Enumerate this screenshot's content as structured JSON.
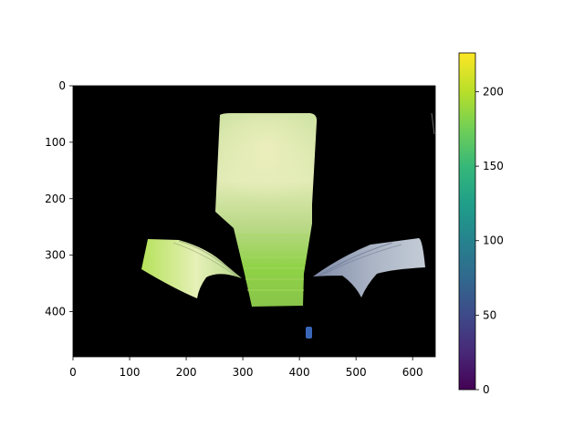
{
  "image": {
    "x_ticks": [
      "0",
      "100",
      "200",
      "300",
      "400",
      "500",
      "600"
    ],
    "y_ticks": [
      "0",
      "100",
      "200",
      "300",
      "400"
    ],
    "colorbar_ticks": [
      "0",
      "50",
      "100",
      "150",
      "200"
    ],
    "colormap": "viridis",
    "background_color": "#000000",
    "colors": {
      "center_top": "#d6e7a2",
      "center_bottom": "#9ddc4e",
      "left_panel": "#c8ea6a",
      "right_panel": "#a6b2c6",
      "small_blob": "#3a66b8"
    }
  }
}
